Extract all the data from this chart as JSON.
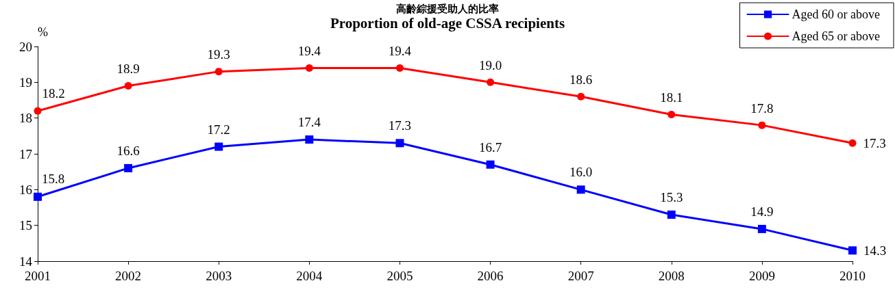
{
  "chart_data": {
    "type": "line",
    "title": "高齡綜援受助人的比率",
    "subtitle": "Proportion of old-age CSSA recipients",
    "ylabel": "%",
    "categories": [
      "2001",
      "2002",
      "2003",
      "2004",
      "2005",
      "2006",
      "2007",
      "2008",
      "2009",
      "2010"
    ],
    "series": [
      {
        "name": "Aged 60 or above",
        "color": "#0000ff",
        "marker": "square",
        "values": [
          15.8,
          16.6,
          17.2,
          17.4,
          17.3,
          16.7,
          16.0,
          15.3,
          14.9,
          14.3
        ],
        "value_labels": [
          "15.8",
          "16.6",
          "17.2",
          "17.4",
          "17.3",
          "16.7",
          "16.0",
          "15.3",
          "14.9",
          "14.3"
        ]
      },
      {
        "name": "Aged 65 or above",
        "color": "#ff0000",
        "marker": "circle",
        "values": [
          18.2,
          18.9,
          19.3,
          19.4,
          19.4,
          19.0,
          18.6,
          18.1,
          17.8,
          17.3
        ],
        "value_labels": [
          "18.2",
          "18.9",
          "19.3",
          "19.4",
          "19.4",
          "19.0",
          "18.6",
          "18.1",
          "17.8",
          "17.3"
        ]
      }
    ],
    "ylim": [
      14,
      20
    ],
    "yticks": [
      14,
      15,
      16,
      17,
      18,
      19,
      20
    ],
    "grid": false,
    "legend": "top right",
    "line_style": "solid"
  }
}
